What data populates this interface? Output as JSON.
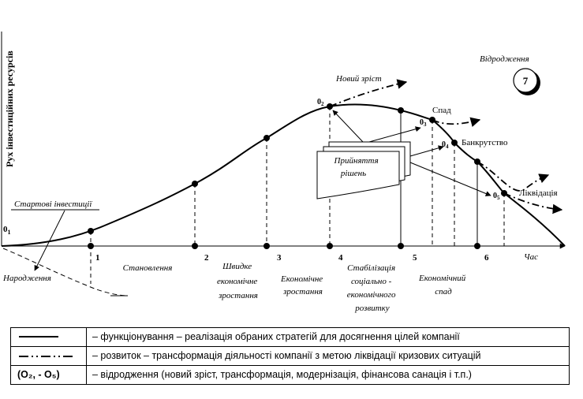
{
  "axes": {
    "y_label": "Рух інвестиційних ресурсів",
    "x_label": "Час",
    "origin_label": "0",
    "origin_sub": "1"
  },
  "stages": [
    {
      "num": "1",
      "lines": [
        "Становлення"
      ]
    },
    {
      "num": "2",
      "lines": [
        "Швидке",
        "економічне",
        "зростання"
      ]
    },
    {
      "num": "3",
      "lines": [
        "Економічне",
        "зростання"
      ]
    },
    {
      "num": "4",
      "lines": [
        "Стабілізація",
        "соціально -",
        "економічного",
        "розвитку"
      ]
    },
    {
      "num": "5",
      "lines": [
        "Економічний",
        "спад"
      ]
    },
    {
      "num": "6",
      "lines": []
    }
  ],
  "labels": {
    "start_invest": "Стартові інвестиції",
    "birth": "Народження",
    "new_growth": "Новий зріст",
    "decline": "Спад",
    "bankruptcy": "Банкрутство",
    "liquidation": "Ліквідація",
    "decision_line1": "Прийняття",
    "decision_line2": "рішень",
    "revival": "Відродження",
    "revival_num": "7"
  },
  "points": [
    {
      "main": "0",
      "sub": "2"
    },
    {
      "main": "0",
      "sub": "3"
    },
    {
      "main": "0",
      "sub": "4"
    },
    {
      "main": "0",
      "sub": "5"
    }
  ],
  "legend": [
    {
      "symbol": "",
      "text": "– функціонування – реалізація обраних стратегій для досягнення цілей компанії"
    },
    {
      "symbol": "",
      "text": "– розвиток – трансформація діяльності компанії з метою ліквідації кризових  ситуацій"
    },
    {
      "symbol": "(О₂, - О₅)",
      "text": "– відродження (новий зріст, трансформація, модернізація, фінансова санація і т.п.)"
    }
  ]
}
